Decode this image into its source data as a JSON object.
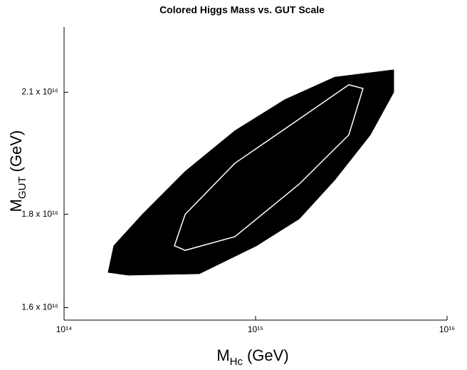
{
  "chart_data": {
    "type": "region",
    "title": "Colored Higgs Mass vs. GUT Scale",
    "xlabel": [
      "M",
      "Hc",
      "(GeV)"
    ],
    "ylabel": [
      "M",
      "GUT",
      "(GeV)"
    ],
    "xscale": "log",
    "yscale": "log",
    "xlim": [
      100000000000000.0,
      1e+16
    ],
    "ylim": [
      1.575e+16,
      2.28e+16
    ],
    "xticks": [
      {
        "value": 100000000000000.0,
        "label": "10¹⁴"
      },
      {
        "value": 1000000000000000.0,
        "label": "10¹⁵"
      },
      {
        "value": 1e+16,
        "label": "10¹⁶"
      }
    ],
    "yticks": [
      {
        "value": 1.6e+16,
        "label": "1.6 x 10¹⁶"
      },
      {
        "value": 1.8e+16,
        "label": "1.8 x 10¹⁶"
      },
      {
        "value": 2.1e+16,
        "label": "2.1 x 10¹⁶"
      }
    ],
    "series": [
      {
        "color": "#000000",
        "x": [
          170000000000000.0,
          182000000000000.0,
          257000000000000.0,
          429000000000000.0,
          780000000000000.0,
          1420000000000000.0,
          2590000000000000.0,
          5260000000000000.0,
          5260000000000000.0,
          3970000000000000.0,
          2590000000000000.0,
          1690000000000000.0,
          1010000000000000.0,
          508000000000000.0,
          216000000000000.0
        ],
        "values": [
          1.673e+16,
          1.73e+16,
          1.8e+16,
          1.9e+16,
          2e+16,
          2.08e+16,
          2.14e+16,
          2.16e+16,
          2.1e+16,
          1.99e+16,
          1.88e+16,
          1.79e+16,
          1.73e+16,
          1.67e+16,
          1.667e+16
        ]
      },
      {
        "color": "#ffffff",
        "x": [
          377000000000000.0,
          429000000000000.0,
          780000000000000.0,
          1690000000000000.0,
          3070000000000000.0,
          3640000000000000.0,
          3070000000000000.0,
          1690000000000000.0,
          780000000000000.0,
          429000000000000.0
        ],
        "values": [
          1.73e+16,
          1.8e+16,
          1.92e+16,
          2.03e+16,
          2.12e+16,
          2.11e+16,
          1.99e+16,
          1.87e+16,
          1.75e+16,
          1.72e+16
        ]
      }
    ]
  }
}
